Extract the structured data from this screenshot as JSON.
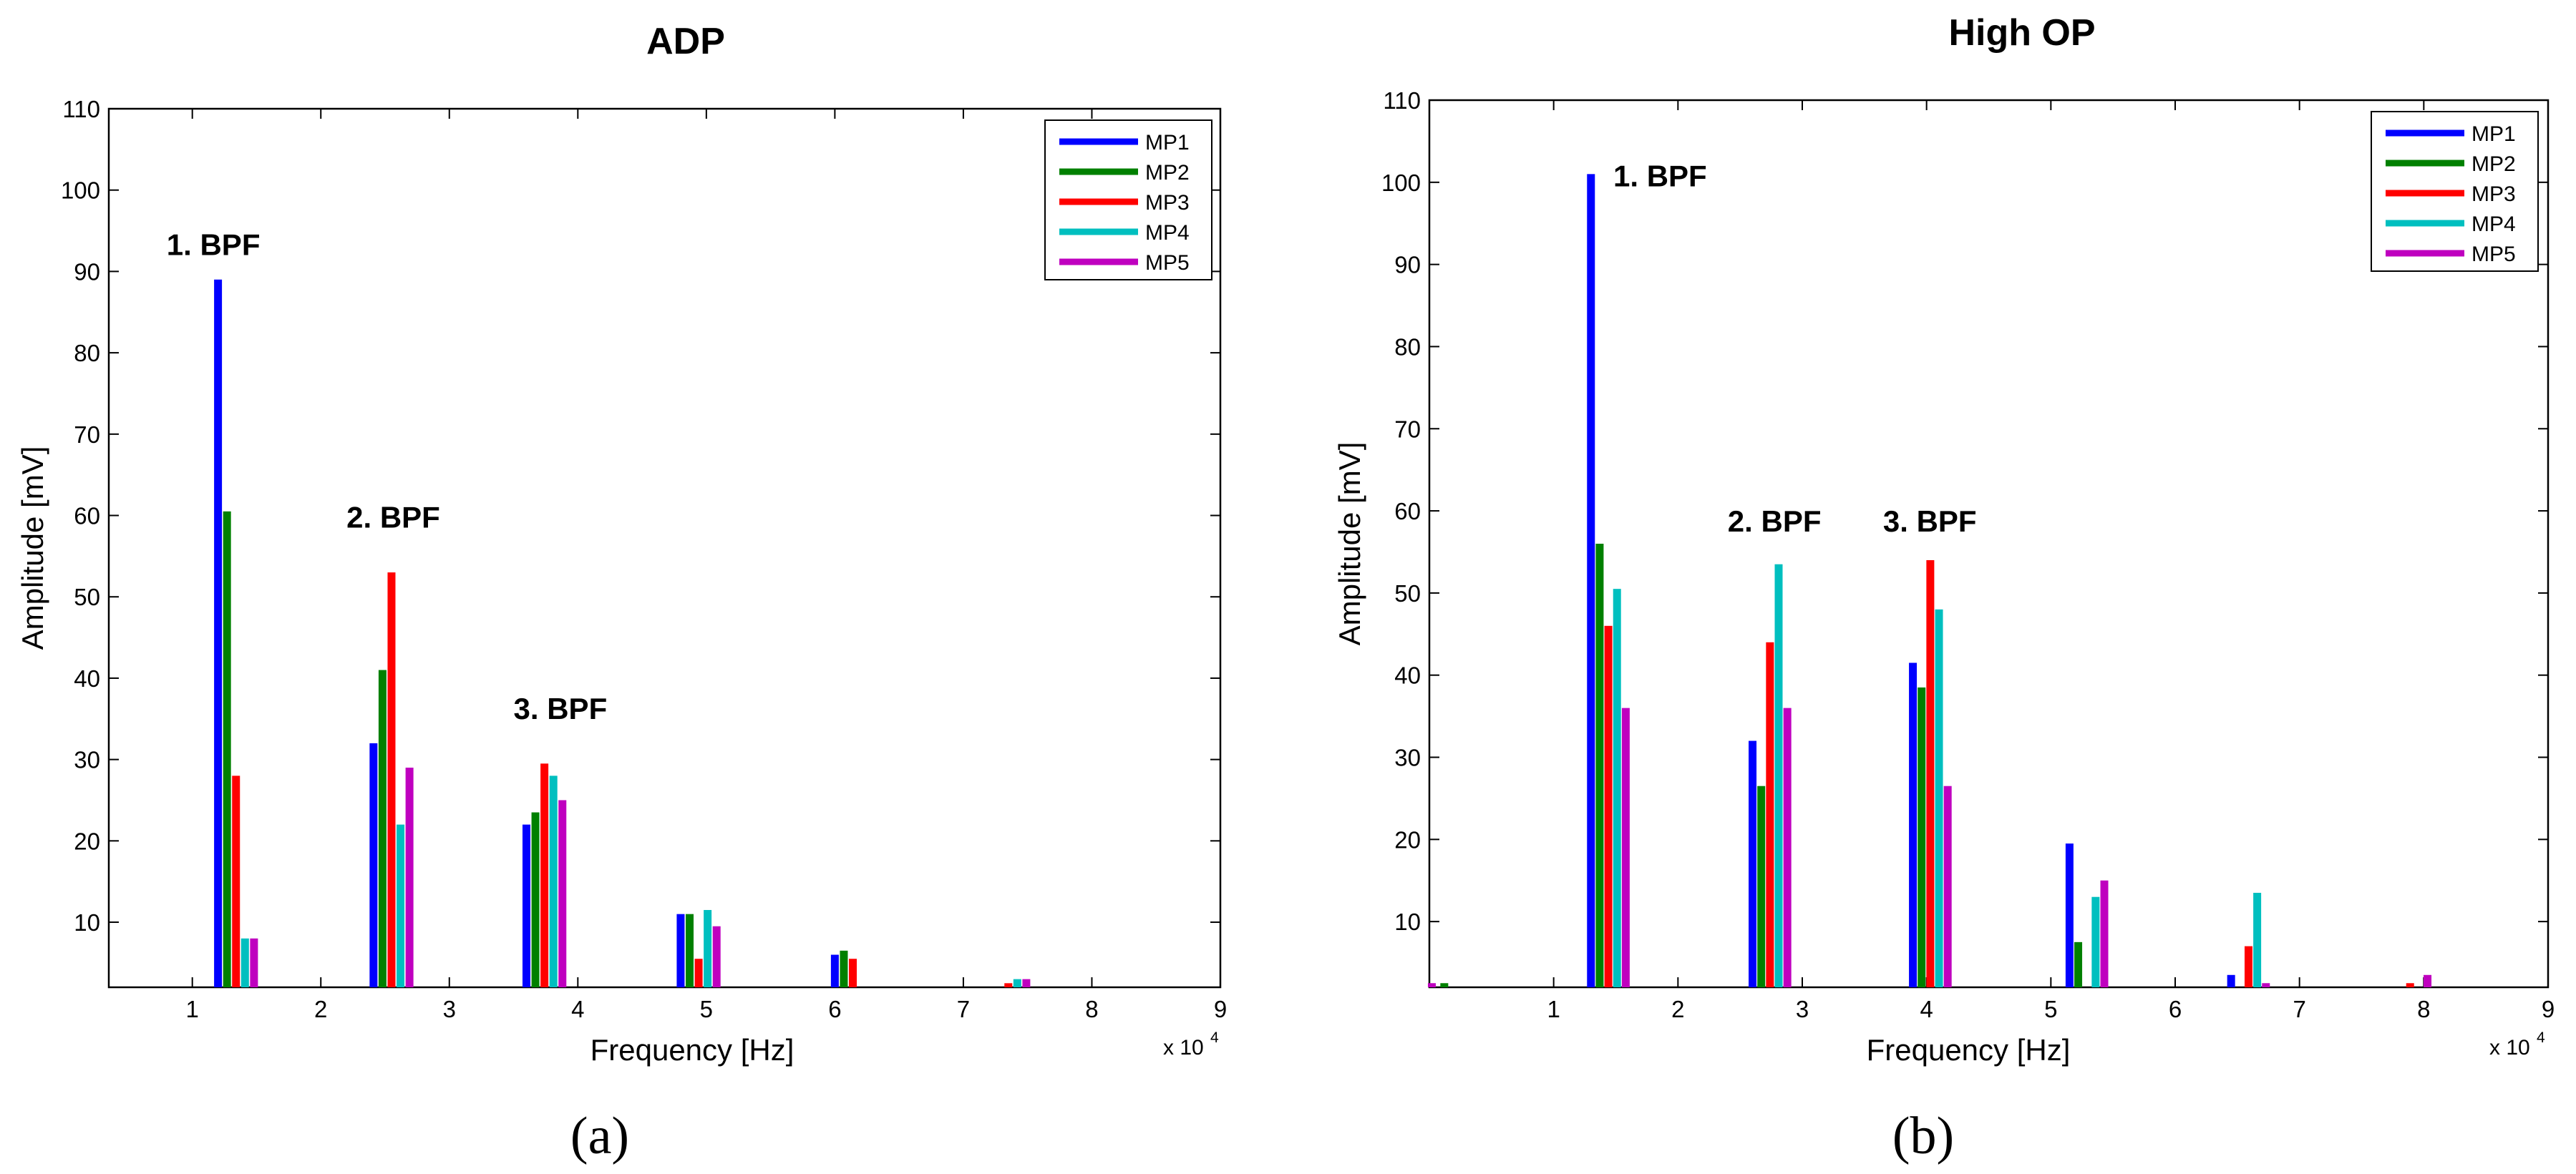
{
  "chart_data": [
    {
      "type": "bar",
      "panel_label": "(a)",
      "title": "ADP",
      "xlabel": "Frequency [Hz]",
      "ylabel": "Amplitude [mV]",
      "x_scale_note": "x 10",
      "x_scale_exponent": "4",
      "xlim": [
        0.35,
        9.0
      ],
      "ylim": [
        2,
        110
      ],
      "xticks": [
        1,
        2,
        3,
        4,
        5,
        6,
        7,
        8,
        9
      ],
      "yticks": [
        10,
        20,
        30,
        40,
        50,
        60,
        70,
        80,
        90,
        100,
        110
      ],
      "legend_position": "top-right",
      "annotations": [
        {
          "text": "1. BPF",
          "x": 0.8,
          "y": 92
        },
        {
          "text": "2. BPF",
          "x": 2.2,
          "y": 58.5
        },
        {
          "text": "3. BPF",
          "x": 3.5,
          "y": 35
        }
      ],
      "series": [
        {
          "name": "MP1",
          "color": "#0000FF",
          "x": [
            1.2,
            2.41,
            3.6,
            4.8,
            6.0,
            7.21
          ],
          "values": [
            89,
            32,
            22,
            11,
            6,
            0
          ]
        },
        {
          "name": "MP2",
          "color": "#008000",
          "x": [
            1.27,
            2.48,
            3.67,
            4.87,
            6.07,
            7.28
          ],
          "values": [
            60.5,
            41,
            23.5,
            11,
            6.5,
            0
          ]
        },
        {
          "name": "MP3",
          "color": "#FF0000",
          "x": [
            1.34,
            2.55,
            3.74,
            4.94,
            6.14,
            7.35
          ],
          "values": [
            28,
            53,
            29.5,
            5.5,
            5.5,
            2.5
          ]
        },
        {
          "name": "MP4",
          "color": "#00BFBF",
          "x": [
            1.41,
            2.62,
            3.81,
            5.01,
            6.21,
            7.42
          ],
          "values": [
            8,
            22,
            28,
            11.5,
            0,
            3
          ]
        },
        {
          "name": "MP5",
          "color": "#BF00BF",
          "x": [
            1.48,
            2.69,
            3.88,
            5.08,
            6.28,
            7.49
          ],
          "values": [
            8,
            29,
            25,
            9.5,
            0,
            3
          ]
        }
      ]
    },
    {
      "type": "bar",
      "panel_label": "(b)",
      "title": "High OP",
      "xlabel": "Frequency [Hz]",
      "ylabel": "Amplitude [mV]",
      "x_scale_note": "x 10",
      "x_scale_exponent": "4",
      "xlim": [
        0.0,
        9.0
      ],
      "ylim": [
        2,
        110
      ],
      "xticks": [
        1,
        2,
        3,
        4,
        5,
        6,
        7,
        8,
        9
      ],
      "yticks": [
        10,
        20,
        30,
        40,
        50,
        60,
        70,
        80,
        90,
        100,
        110
      ],
      "legend_position": "top-right",
      "annotations": [
        {
          "text": "1. BPF",
          "x": 1.48,
          "y": 99.5
        },
        {
          "text": "2. BPF",
          "x": 2.4,
          "y": 57.5
        },
        {
          "text": "3. BPF",
          "x": 3.65,
          "y": 57.5
        }
      ],
      "series": [
        {
          "name": "MP1",
          "color": "#0000FF",
          "x": [
            0.05,
            1.3,
            2.6,
            3.89,
            5.15,
            6.45,
            7.75
          ],
          "values": [
            0,
            101,
            32,
            41.5,
            19.5,
            3.5,
            0
          ]
        },
        {
          "name": "MP2",
          "color": "#008000",
          "x": [
            0.12,
            1.37,
            2.67,
            3.96,
            5.22,
            6.52,
            7.82
          ],
          "values": [
            2.5,
            56,
            26.5,
            38.5,
            7.5,
            0,
            0
          ]
        },
        {
          "name": "MP3",
          "color": "#FF0000",
          "x": [
            0.19,
            1.44,
            2.74,
            4.03,
            5.29,
            6.59,
            7.89
          ],
          "values": [
            0,
            46,
            44,
            54,
            0,
            7,
            2.5
          ]
        },
        {
          "name": "MP4",
          "color": "#00BFBF",
          "x": [
            0.26,
            1.51,
            2.81,
            4.1,
            5.36,
            6.66,
            7.96
          ],
          "values": [
            0,
            50.5,
            53.5,
            48,
            13,
            13.5,
            0
          ]
        },
        {
          "name": "MP5",
          "color": "#BF00BF",
          "x": [
            0.02,
            1.58,
            2.88,
            4.17,
            5.43,
            6.73,
            8.03
          ],
          "values": [
            2.5,
            36,
            36,
            26.5,
            15,
            2.5,
            3.5
          ]
        }
      ]
    }
  ]
}
